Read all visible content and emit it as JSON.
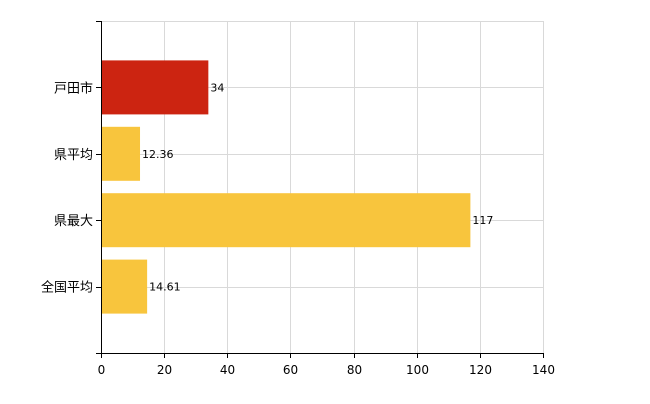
{
  "chart_data": {
    "type": "bar",
    "orientation": "horizontal",
    "categories": [
      "戸田市",
      "県平均",
      "県最大",
      "全国平均"
    ],
    "values": [
      34,
      12.36,
      117,
      14.61
    ],
    "value_labels": [
      "34",
      "12.36",
      "117",
      "14.61"
    ],
    "bar_colors": [
      "#CC2411",
      "#F8C53D",
      "#F8C53D",
      "#F8C53D"
    ],
    "xlim": [
      0,
      140
    ],
    "xticks": [
      0,
      20,
      40,
      60,
      80,
      100,
      120,
      140
    ],
    "grid": true,
    "legend": "none",
    "title": "",
    "xlabel": "",
    "ylabel": ""
  }
}
